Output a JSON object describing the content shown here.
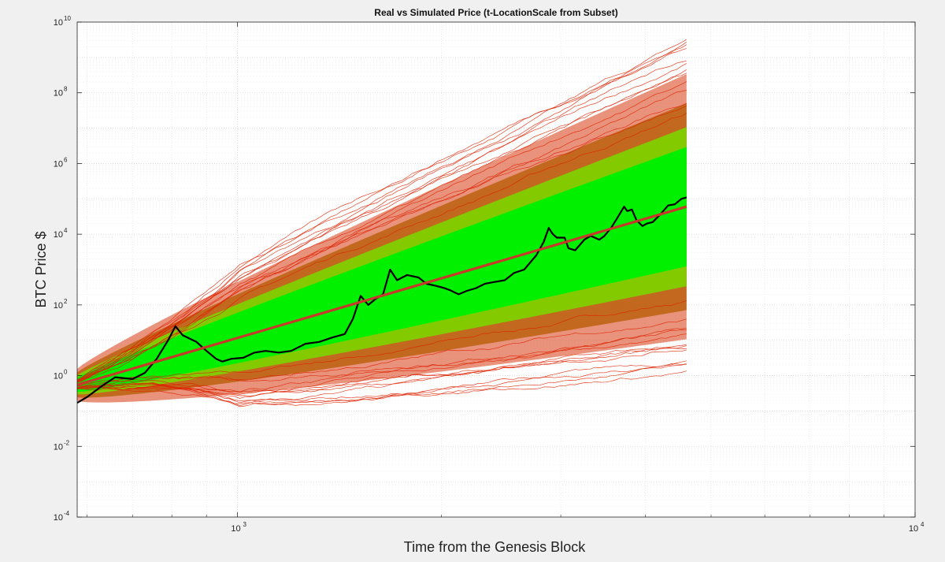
{
  "chart_data": {
    "type": "line",
    "title": "Real vs Simulated Price (t-LocationScale from Subset)",
    "xlabel": "Time from the Genesis Block",
    "ylabel": "BTC Price $",
    "xscale": "log",
    "yscale": "log",
    "xlim": [
      580,
      10000
    ],
    "ylim": [
      0.0001,
      10000000000
    ],
    "grid": true,
    "x_ticks": [
      {
        "base": "10",
        "exp": "3",
        "value": 1000
      },
      {
        "base": "10",
        "exp": "4",
        "value": 10000
      }
    ],
    "y_ticks": [
      {
        "base": "10",
        "exp": "10",
        "value": 10000000000
      },
      {
        "base": "10",
        "exp": "8",
        "value": 100000000
      },
      {
        "base": "10",
        "exp": "6",
        "value": 1000000
      },
      {
        "base": "10",
        "exp": "4",
        "value": 10000
      },
      {
        "base": "10",
        "exp": "2",
        "value": 100
      },
      {
        "base": "10",
        "exp": "0",
        "value": 1
      },
      {
        "base": "10",
        "exp": "-2",
        "value": 0.01
      },
      {
        "base": "10",
        "exp": "-4",
        "value": 0.0001
      }
    ],
    "series": [
      {
        "role": "real-price",
        "color": "#000000",
        "points": [
          [
            580,
            0.17
          ],
          [
            600,
            0.25
          ],
          [
            630,
            0.5
          ],
          [
            660,
            0.9
          ],
          [
            700,
            0.8
          ],
          [
            730,
            1.2
          ],
          [
            760,
            3
          ],
          [
            790,
            10
          ],
          [
            810,
            25
          ],
          [
            830,
            14
          ],
          [
            870,
            9
          ],
          [
            900,
            5
          ],
          [
            930,
            3
          ],
          [
            950,
            2.5
          ],
          [
            980,
            3
          ],
          [
            1020,
            3.2
          ],
          [
            1060,
            4.5
          ],
          [
            1100,
            5
          ],
          [
            1150,
            4.5
          ],
          [
            1200,
            5
          ],
          [
            1260,
            8
          ],
          [
            1320,
            9
          ],
          [
            1380,
            12
          ],
          [
            1440,
            15
          ],
          [
            1480,
            40
          ],
          [
            1520,
            180
          ],
          [
            1560,
            100
          ],
          [
            1600,
            150
          ],
          [
            1640,
            200
          ],
          [
            1680,
            1000
          ],
          [
            1720,
            500
          ],
          [
            1780,
            700
          ],
          [
            1850,
            600
          ],
          [
            1900,
            400
          ],
          [
            1960,
            350
          ],
          [
            2020,
            300
          ],
          [
            2060,
            260
          ],
          [
            2120,
            200
          ],
          [
            2180,
            250
          ],
          [
            2250,
            300
          ],
          [
            2320,
            400
          ],
          [
            2400,
            450
          ],
          [
            2480,
            500
          ],
          [
            2560,
            800
          ],
          [
            2650,
            1000
          ],
          [
            2760,
            2500
          ],
          [
            2830,
            6000
          ],
          [
            2880,
            15000
          ],
          [
            2920,
            10000
          ],
          [
            2960,
            8000
          ],
          [
            3040,
            8000
          ],
          [
            3080,
            4000
          ],
          [
            3150,
            3500
          ],
          [
            3250,
            7000
          ],
          [
            3320,
            9000
          ],
          [
            3420,
            7000
          ],
          [
            3480,
            9000
          ],
          [
            3560,
            15000
          ],
          [
            3640,
            30000
          ],
          [
            3720,
            60000
          ],
          [
            3760,
            45000
          ],
          [
            3820,
            50000
          ],
          [
            3880,
            25000
          ],
          [
            3960,
            17000
          ],
          [
            4020,
            20000
          ],
          [
            4100,
            22000
          ],
          [
            4200,
            35000
          ],
          [
            4320,
            65000
          ],
          [
            4420,
            70000
          ],
          [
            4520,
            100000
          ],
          [
            4600,
            110000
          ]
        ]
      },
      {
        "role": "median-fit",
        "color": "#c8392b",
        "points": [
          [
            580,
            0.55
          ],
          [
            4600,
            60000
          ]
        ]
      }
    ],
    "simulation_band": {
      "description_color_inner": "#00ee00",
      "description_color_outer": "#dd2200",
      "x_end": 4600
    }
  }
}
